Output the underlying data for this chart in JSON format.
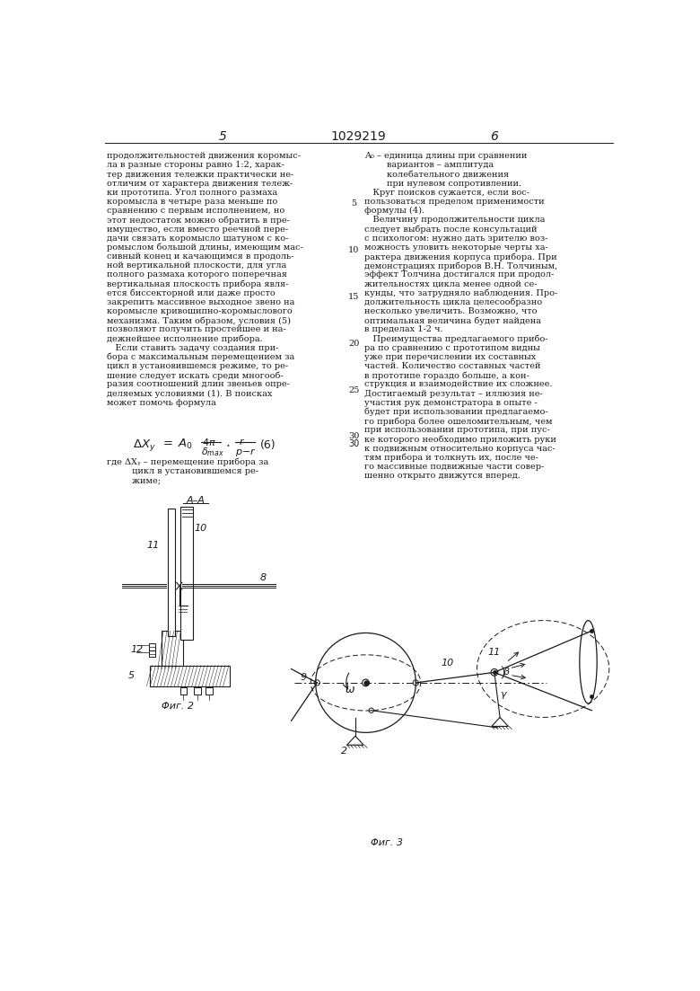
{
  "bg_color": "#ffffff",
  "text_color": "#1a1a1a",
  "page_number_left": "5",
  "page_number_center": "1029219",
  "page_number_right": "6",
  "col1_lines": [
    "продолжительностей движения коромыс-",
    "ла в разные стороны равно 1:2, харак-",
    "тер движения тележки практически не-",
    "отличим от характера движения тележ-",
    "ки прототипа. Угол полного размаха",
    "коромысла в четыре раза меньше по",
    "сравнению с первым исполнением, но",
    "этот недостаток можно обратить в пре-",
    "имущество, если вместо реечной пере-",
    "дачи связать коромысло шатуном с ко-",
    "ромыслом большой длины, имеющим мас-",
    "сивный конец и качающимся в продоль-",
    "ной вертикальной плоскости, для угла",
    "полного размаха которого поперечная",
    "вертикальная плоскость прибора явля-",
    "ется биссекторной или даже просто",
    "закрепить массивное выходное звено на",
    "коромысле кривошипно-коромыслового",
    "механизма. Таким образом, условия (5)",
    "позволяют получить простейшее и на-",
    "дежнейшее исполнение прибора.",
    "   Если ставить задачу создания при-",
    "бора с максимальным перемещением за",
    "цикл в установившемся режиме, то ре-",
    "шение следует искать среди многооб-",
    "разия соотношений длин звеньев опре-",
    "деляемых условиями (1). В поисках",
    "может помочь формула"
  ],
  "col2_lines": [
    "A₀ – единица длины при сравнении",
    "        вариантов – амплитуда",
    "        колебательного движения",
    "        при нулевом сопротивлении.",
    "   Круг поисков сужается, если вос-",
    "пользоваться пределом применимости",
    "формулы (4).",
    "   Величину продолжительности цикла",
    "следует выбрать после консультаций",
    "с психологом: нужно дать зрителю воз-",
    "можность уловить некоторые черты ха-",
    "рактера движения корпуса прибора. При",
    "демонстрациях приборов В.Н. Толчиным,",
    "эффект Толчина достигался при продол-",
    "жительностях цикла менее одной се-",
    "кунды, что затрудняло наблюдения. Про-",
    "должительность цикла целесообразно",
    "несколько увеличить. Возможно, что",
    "оптимальная величина будет найдена",
    "в пределах 1-2 ч.",
    "   Преимущества предлагаемого прибо-",
    "ра по сравнению с прототипом видны",
    "уже при перечислении их составных",
    "частей. Количество составных частей",
    "в прототипе гораздо больше, а кон-",
    "струкция и взаимодействие их сложнее.",
    "Достигаемый результат – иллюзия не-",
    "участия рук демонстратора в опыте -",
    "будет при использовании предлагаемо-",
    "го прибора более ошеломительным, чем",
    "при использовании прототипа, при пус-",
    "ке которого необходимо приложить руки",
    "к подвижным относительно корпуса час-",
    "тям прибора и толкнуть их, после че-",
    "го массивные подвижные части совер-",
    "шенно открыто движутся вперед."
  ],
  "where_lines": [
    "где ΔXᵧ – перемещение прибора за",
    "         цикл в установившемся ре-",
    "         жиме;"
  ],
  "fig2_label": "Φиг. 2",
  "fig3_label": "Φиг. 3",
  "aa_label": "A–A",
  "line_nums": {
    "5": 116,
    "10": 184,
    "15": 252,
    "20": 319,
    "25": 386,
    "30": 453
  }
}
